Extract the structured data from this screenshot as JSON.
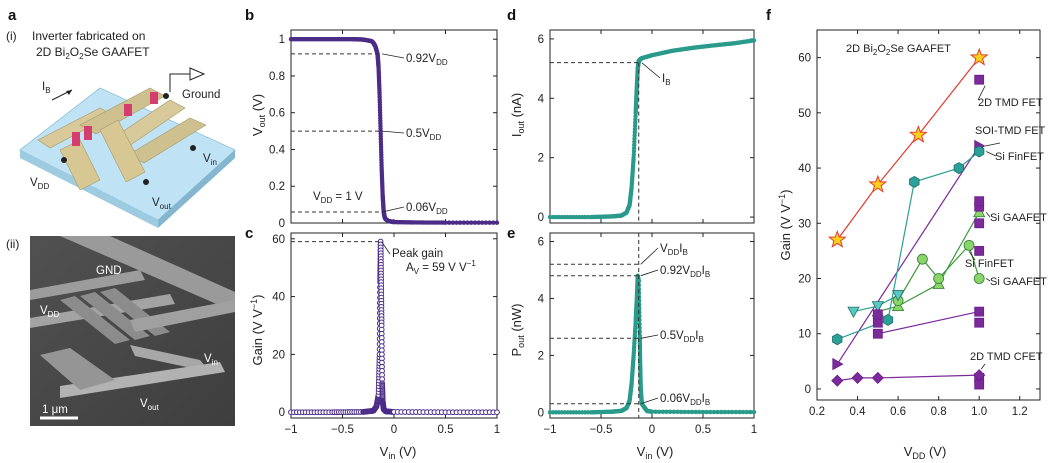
{
  "panels": {
    "a": {
      "label": "a",
      "i_label": "(i)",
      "title_line1": "Inverter fabricated on",
      "title_line2": "2D Bi2O2Se GAAFET",
      "device_labels": {
        "ib": "IB",
        "ground": "Ground",
        "vdd": "VDD",
        "vin": "Vin",
        "vout": "Vout"
      },
      "ii_label": "(ii)",
      "sem_labels": {
        "gnd": "GND",
        "vdd": "VDD",
        "vin": "Vin",
        "vout": "Vout",
        "scale": "1 μm"
      }
    },
    "b": {
      "label": "b"
    },
    "c": {
      "label": "c"
    },
    "d": {
      "label": "d"
    },
    "e": {
      "label": "e"
    },
    "f": {
      "label": "f"
    }
  },
  "colors": {
    "purple": "#4b2c87",
    "teal": "#2a9a8a",
    "sem_bg": "#6b6b6b"
  },
  "chart_data": [
    {
      "id": "b",
      "type": "line",
      "xlabel": "Vin (V)",
      "ylabel": "Vout (V)",
      "xlim": [
        -1.0,
        1.0
      ],
      "ylim": [
        0,
        1.05
      ],
      "xticks": [
        -1.0,
        -0.5,
        0,
        0.5,
        1.0
      ],
      "yticks": [
        0,
        0.2,
        0.4,
        0.6,
        0.8,
        1.0
      ],
      "series": [
        {
          "x": [
            -1.0,
            -0.8,
            -0.6,
            -0.4,
            -0.3,
            -0.22,
            -0.2,
            -0.18,
            -0.16,
            -0.15,
            -0.14,
            -0.13,
            -0.12,
            -0.11,
            -0.1,
            -0.09,
            -0.08,
            -0.05,
            0,
            0.2,
            0.5,
            1.0
          ],
          "y": [
            1.0,
            1.0,
            1.0,
            1.0,
            0.998,
            0.99,
            0.98,
            0.96,
            0.92,
            0.85,
            0.7,
            0.5,
            0.3,
            0.15,
            0.06,
            0.03,
            0.02,
            0.01,
            0.005,
            0.003,
            0.002,
            0.002
          ]
        }
      ],
      "annotations": [
        {
          "text": "0.92VDD",
          "y": 0.92
        },
        {
          "text": "0.5VDD",
          "y": 0.5
        },
        {
          "text": "0.06VDD",
          "y": 0.06
        },
        {
          "text": "VDD = 1 V"
        }
      ]
    },
    {
      "id": "c",
      "type": "line",
      "xlabel": "Vin (V)",
      "ylabel": "Gain (V V−1)",
      "xlim": [
        -1.0,
        1.0
      ],
      "ylim": [
        -2,
        62
      ],
      "xticks": [
        -1.0,
        -0.5,
        0,
        0.5,
        1.0
      ],
      "yticks": [
        0,
        20,
        40,
        60
      ],
      "series": [
        {
          "x": [
            -1.0,
            -0.6,
            -0.3,
            -0.2,
            -0.17,
            -0.15,
            -0.14,
            -0.135,
            -0.13,
            -0.125,
            -0.12,
            -0.115,
            -0.11,
            -0.1,
            -0.08,
            0,
            0.5,
            1.0
          ],
          "y": [
            0,
            0,
            0.1,
            0.5,
            2,
            6,
            20,
            45,
            59,
            45,
            30,
            10,
            4,
            1,
            0.3,
            0.1,
            0,
            0
          ]
        }
      ],
      "annotations": [
        {
          "text": "Peak gain",
          "text2": "AV = 59 V V−1",
          "y": 59
        }
      ]
    },
    {
      "id": "d",
      "type": "line",
      "xlabel": "Vin (V)",
      "ylabel": "Iout (nA)",
      "xlim": [
        -1.0,
        1.0
      ],
      "ylim": [
        -0.2,
        6.3
      ],
      "xticks": [
        -1.0,
        -0.5,
        0,
        0.5,
        1.0
      ],
      "yticks": [
        0,
        2,
        4,
        6
      ],
      "series": [
        {
          "x": [
            -1.0,
            -0.6,
            -0.4,
            -0.3,
            -0.25,
            -0.22,
            -0.2,
            -0.18,
            -0.16,
            -0.15,
            -0.14,
            -0.13,
            -0.12,
            -0.1,
            0,
            0.2,
            0.4,
            0.6,
            0.8,
            1.0
          ],
          "y": [
            0,
            0,
            0.02,
            0.05,
            0.15,
            0.4,
            1.0,
            2.0,
            3.5,
            4.3,
            5.0,
            5.25,
            5.3,
            5.35,
            5.45,
            5.6,
            5.7,
            5.78,
            5.85,
            5.95
          ]
        }
      ],
      "annotations": [
        {
          "text": "IB",
          "y": 5.2
        }
      ]
    },
    {
      "id": "e",
      "type": "line",
      "xlabel": "Vin (V)",
      "ylabel": "Pout (nW)",
      "xlim": [
        -1.0,
        1.0
      ],
      "ylim": [
        -0.2,
        6.3
      ],
      "xticks": [
        -1.0,
        -0.5,
        0,
        0.5,
        1.0
      ],
      "yticks": [
        0,
        2,
        4,
        6
      ],
      "series": [
        {
          "x": [
            -1.0,
            -0.6,
            -0.4,
            -0.3,
            -0.25,
            -0.22,
            -0.2,
            -0.18,
            -0.16,
            -0.15,
            -0.14,
            -0.13,
            -0.12,
            -0.115,
            -0.11,
            -0.1,
            -0.05,
            0,
            0.5,
            1.0
          ],
          "y": [
            0,
            0,
            0.02,
            0.05,
            0.15,
            0.4,
            1.0,
            2.0,
            3.2,
            3.9,
            4.8,
            4.6,
            2.7,
            1.6,
            0.8,
            0.3,
            0.05,
            0.02,
            0.01,
            0.01
          ]
        }
      ],
      "annotations": [
        {
          "text": "VDDIB",
          "y": 5.2
        },
        {
          "text": "0.92VDDIB",
          "y": 4.8
        },
        {
          "text": "0.5VDDIB",
          "y": 2.6
        },
        {
          "text": "0.06VDDIB",
          "y": 0.3
        }
      ]
    },
    {
      "id": "f",
      "type": "scatter",
      "xlabel": "VDD (V)",
      "ylabel": "Gain (V V−1)",
      "xlim": [
        0.2,
        1.3
      ],
      "ylim": [
        -2,
        65
      ],
      "xticks": [
        0.2,
        0.4,
        0.6,
        0.8,
        1.0,
        1.2
      ],
      "yticks": [
        0,
        10,
        20,
        30,
        40,
        50,
        60
      ],
      "title": "2D Bi2O2Se GAAFET",
      "series": [
        {
          "name": "2D Bi2O2Se GAAFET",
          "marker": "star",
          "color": "#e23b2e",
          "fill": "#ffd21a",
          "x": [
            0.3,
            0.5,
            0.7,
            1.0
          ],
          "y": [
            27,
            37,
            46,
            60
          ]
        },
        {
          "name": "2D TMD FET",
          "marker": "square",
          "color": "#6a1e8f",
          "fill": "#7b2a9a",
          "x": [
            1.0
          ],
          "y": [
            56
          ]
        },
        {
          "name": "SOI-TMD FET",
          "marker": "tri-right",
          "color": "#6a1e8f",
          "fill": "#7b2a9a",
          "x": [
            0.3,
            1.0
          ],
          "y": [
            4.5,
            44
          ]
        },
        {
          "name": "Si FinFET",
          "marker": "hexagon",
          "color": "#1f6e6e",
          "fill": "#2aa096",
          "x": [
            0.3,
            0.55,
            0.68,
            0.9,
            1.0
          ],
          "y": [
            9,
            12.5,
            37.5,
            40,
            43
          ]
        },
        {
          "name": "Si GAAFET",
          "marker": "tri-up",
          "color": "#2e7d32",
          "fill": "#8ad46a",
          "x": [
            0.5,
            0.6,
            0.8,
            1.0
          ],
          "y": [
            14,
            15,
            19,
            32
          ]
        },
        {
          "name": "Si FinFET",
          "marker": "circle",
          "color": "#2e7d32",
          "fill": "#8ad46a",
          "x": [
            0.6,
            0.72,
            0.8,
            0.95,
            1.0
          ],
          "y": [
            16,
            23.5,
            20,
            26,
            20
          ]
        },
        {
          "name": "",
          "marker": "tri-down",
          "color": "#1f6e6e",
          "fill": "#58c9c0",
          "x": [
            0.38,
            0.5,
            0.6
          ],
          "y": [
            14,
            15,
            17
          ]
        },
        {
          "name": "",
          "marker": "square",
          "color": "#6a1e8f",
          "fill": "#7b2a9a",
          "x": [
            0.5,
            0.5,
            0.5,
            1.0,
            1.0,
            1.0,
            1.0,
            1.0,
            1.0,
            1.0,
            1.0
          ],
          "y": [
            10,
            12,
            13.5,
            14,
            12,
            33,
            34,
            30,
            25,
            2,
            0.8
          ]
        },
        {
          "name": "2D TMD CFET",
          "marker": "diamond",
          "color": "#6a1e8f",
          "fill": "#7b2a9a",
          "x": [
            0.3,
            0.4,
            0.5,
            1.0
          ],
          "y": [
            1.5,
            2,
            2,
            2.5
          ]
        }
      ],
      "lines": [
        {
          "color": "#e23b2e",
          "x": [
            0.3,
            0.5,
            0.7,
            1.0
          ],
          "y": [
            27,
            37,
            46,
            60
          ]
        },
        {
          "color": "#7b2a9a",
          "x": [
            0.3,
            1.0
          ],
          "y": [
            4.5,
            44
          ]
        },
        {
          "color": "#2aa096",
          "x": [
            0.3,
            0.55,
            0.68,
            0.9,
            1.0
          ],
          "y": [
            9,
            12.5,
            37.5,
            40,
            43
          ]
        },
        {
          "color": "#3a9a3a",
          "x": [
            0.5,
            0.6,
            0.8,
            1.0
          ],
          "y": [
            14,
            15,
            19,
            32
          ]
        },
        {
          "color": "#3a9a3a",
          "x": [
            0.6,
            0.72,
            0.8,
            0.95,
            1.0
          ],
          "y": [
            16,
            23.5,
            20,
            26,
            20
          ]
        },
        {
          "color": "#2aa096",
          "x": [
            0.38,
            0.5,
            0.6
          ],
          "y": [
            14,
            15,
            17
          ]
        },
        {
          "color": "#7b2a9a",
          "x": [
            0.5,
            1.0
          ],
          "y": [
            10,
            14
          ]
        },
        {
          "color": "#7b2a9a",
          "x": [
            0.3,
            0.4,
            0.5,
            1.0
          ],
          "y": [
            1.5,
            2,
            2,
            2.5
          ]
        }
      ],
      "labels": [
        "2D TMD FET",
        "SOI-TMD FET",
        "Si FinFET",
        "Si GAAFET",
        "Si FinFET",
        "Si GAAFET",
        "2D TMD CFET"
      ]
    }
  ]
}
